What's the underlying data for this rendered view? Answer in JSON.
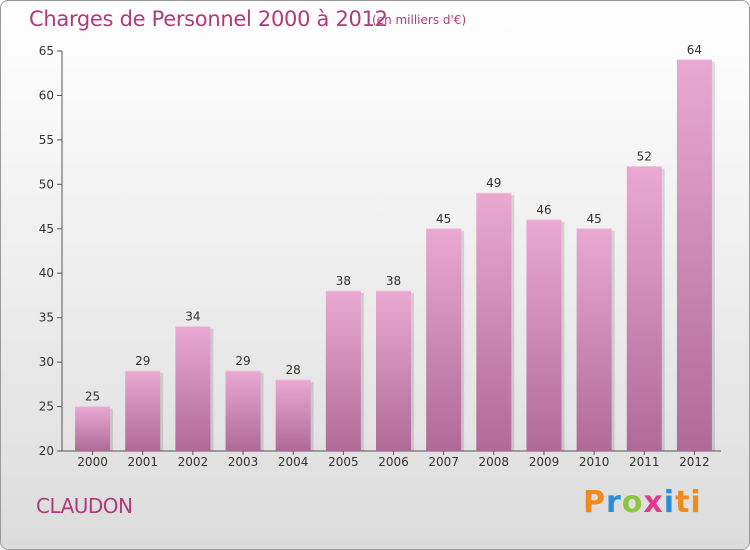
{
  "header": {
    "title": "Charges de Personnel 2000 à 2012",
    "subtitle": "(en milliers d'€)"
  },
  "commune": "CLAUDON",
  "logo": [
    "P",
    "r",
    "o",
    "x",
    "i",
    "ti"
  ],
  "colors": {
    "title": "#b03a7a",
    "bar_top": "#e9a9d1",
    "bar_bottom": "#b06a98"
  },
  "chart_data": {
    "type": "bar",
    "title": "Charges de Personnel 2000 à 2012",
    "subtitle": "(en milliers d'€)",
    "categories": [
      "2000",
      "2001",
      "2002",
      "2003",
      "2004",
      "2005",
      "2006",
      "2007",
      "2008",
      "2009",
      "2010",
      "2011",
      "2012"
    ],
    "values": [
      25,
      29,
      34,
      29,
      28,
      38,
      38,
      45,
      49,
      46,
      45,
      52,
      64
    ],
    "ylim": [
      20,
      65
    ],
    "yticks": [
      20,
      25,
      30,
      35,
      40,
      45,
      50,
      55,
      60,
      65
    ],
    "grid": false,
    "legend": "none"
  }
}
